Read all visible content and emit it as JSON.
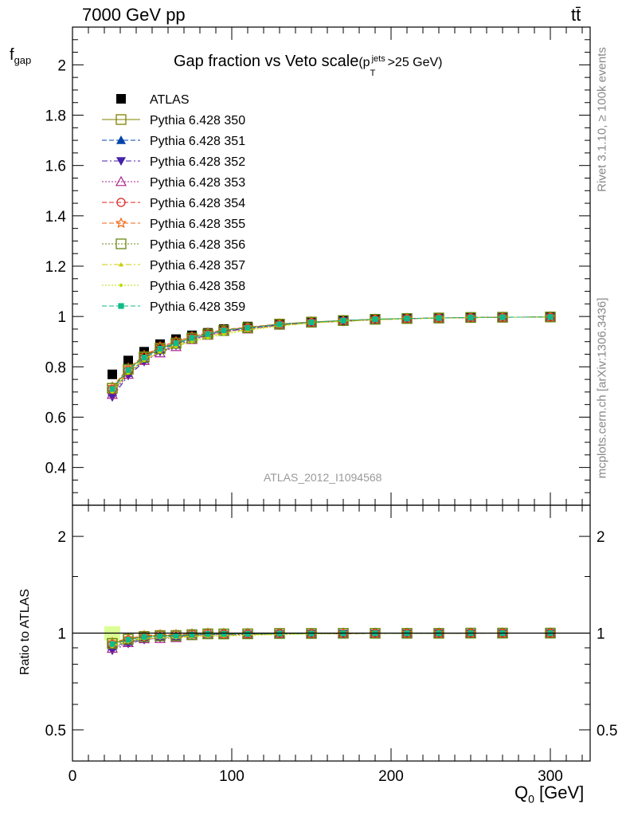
{
  "header": {
    "left": "7000 GeV pp",
    "right": "tt̄"
  },
  "side": {
    "rivet": "Rivet 3.1.10, ≥ 100k events",
    "mcplots": "mcplots.cern.ch [arXiv:1306.3436]"
  },
  "watermark": "ATLAS_2012_I1094568",
  "colors": {
    "ATLAS": "#000000",
    "s350": "#808000",
    "s351": "#0044aa",
    "s352": "#4422aa",
    "s353": "#aa2288",
    "s354": "#dd2222",
    "s355": "#ee6611",
    "s356": "#668811",
    "s357": "#cccc00",
    "s358": "#bbdd00",
    "s359": "#11bb88"
  },
  "chart_data": [
    {
      "type": "line",
      "title": "Gap fraction vs Veto scale",
      "title_suffix": {
        "pre": "(p",
        "sup": "jets",
        "sub": "T",
        "post": ">25 GeV)"
      },
      "ylabel": "f",
      "ylabel_sub": "gap",
      "xlim": [
        0,
        325
      ],
      "ylim": [
        0.25,
        2.15
      ],
      "yticks": [
        0.4,
        0.6,
        0.8,
        1,
        1.2,
        1.4,
        1.6,
        1.8,
        2
      ],
      "ytick_labels": [
        "0.4",
        "0.6",
        "0.8",
        "1",
        "1.2",
        "1.4",
        "1.6",
        "1.8",
        "2"
      ],
      "x": [
        25,
        35,
        45,
        55,
        65,
        75,
        85,
        95,
        110,
        130,
        150,
        170,
        190,
        210,
        230,
        250,
        270,
        300
      ],
      "series": [
        {
          "name": "ATLAS",
          "marker": "filled-square",
          "dash": "none",
          "values": [
            0.77,
            0.825,
            0.86,
            0.89,
            0.91,
            0.925,
            0.935,
            0.95,
            0.96,
            0.972,
            0.98,
            0.985,
            0.99,
            0.993,
            0.995,
            0.996,
            0.997,
            0.998
          ]
        },
        {
          "name": "Pythia 6.428 350",
          "marker": "open-square",
          "dash": "solid",
          "values": [
            0.715,
            0.79,
            0.84,
            0.875,
            0.895,
            0.915,
            0.93,
            0.945,
            0.955,
            0.97,
            0.978,
            0.984,
            0.989,
            0.992,
            0.994,
            0.996,
            0.997,
            0.998
          ]
        },
        {
          "name": "Pythia 6.428 351",
          "marker": "filled-triangle-up",
          "dash": "dashed",
          "values": [
            0.7,
            0.775,
            0.83,
            0.87,
            0.89,
            0.915,
            0.93,
            0.945,
            0.955,
            0.968,
            0.977,
            0.984,
            0.988,
            0.992,
            0.994,
            0.996,
            0.997,
            0.998
          ]
        },
        {
          "name": "Pythia 6.428 352",
          "marker": "filled-triangle-down",
          "dash": "dashdot",
          "values": [
            0.68,
            0.765,
            0.82,
            0.86,
            0.885,
            0.91,
            0.925,
            0.94,
            0.952,
            0.966,
            0.976,
            0.982,
            0.987,
            0.991,
            0.994,
            0.995,
            0.997,
            0.998
          ]
        },
        {
          "name": "Pythia 6.428 353",
          "marker": "open-triangle-up",
          "dash": "dotted",
          "values": [
            0.69,
            0.77,
            0.825,
            0.855,
            0.88,
            0.908,
            0.925,
            0.94,
            0.95,
            0.965,
            0.975,
            0.981,
            0.987,
            0.991,
            0.994,
            0.995,
            0.997,
            0.998
          ]
        },
        {
          "name": "Pythia 6.428 354",
          "marker": "open-circle",
          "dash": "dashed",
          "values": [
            0.71,
            0.785,
            0.84,
            0.88,
            0.9,
            0.92,
            0.935,
            0.945,
            0.955,
            0.97,
            0.977,
            0.98,
            0.988,
            0.992,
            0.994,
            0.996,
            0.997,
            0.998
          ]
        },
        {
          "name": "Pythia 6.428 355",
          "marker": "open-star",
          "dash": "dashed",
          "values": [
            0.72,
            0.795,
            0.845,
            0.88,
            0.9,
            0.92,
            0.935,
            0.948,
            0.958,
            0.97,
            0.978,
            0.984,
            0.989,
            0.992,
            0.994,
            0.996,
            0.997,
            0.998
          ]
        },
        {
          "name": "Pythia 6.428 356",
          "marker": "open-square",
          "dash": "dotted",
          "values": [
            0.715,
            0.79,
            0.838,
            0.872,
            0.893,
            0.914,
            0.93,
            0.944,
            0.955,
            0.969,
            0.977,
            0.984,
            0.989,
            0.992,
            0.994,
            0.996,
            0.997,
            0.998
          ]
        },
        {
          "name": "Pythia 6.428 357",
          "marker": "small-triangle",
          "dash": "dashdot",
          "values": [
            0.705,
            0.78,
            0.83,
            0.865,
            0.885,
            0.905,
            0.92,
            0.935,
            0.948,
            0.964,
            0.975,
            0.982,
            0.987,
            0.991,
            0.994,
            0.995,
            0.997,
            0.998
          ]
        },
        {
          "name": "Pythia 6.428 358",
          "marker": "dot",
          "dash": "dotted",
          "values": [
            0.7,
            0.775,
            0.825,
            0.86,
            0.88,
            0.9,
            0.915,
            0.93,
            0.945,
            0.962,
            0.974,
            0.981,
            0.987,
            0.991,
            0.994,
            0.995,
            0.997,
            0.998
          ]
        },
        {
          "name": "Pythia 6.428 359",
          "marker": "filled-square-small",
          "dash": "dashed",
          "values": [
            0.712,
            0.787,
            0.837,
            0.872,
            0.894,
            0.915,
            0.93,
            0.945,
            0.955,
            0.969,
            0.977,
            0.984,
            0.989,
            0.992,
            0.994,
            0.996,
            0.997,
            0.998
          ]
        }
      ],
      "legend": "top-left",
      "grid": false
    },
    {
      "type": "line",
      "ylabel": "Ratio to ATLAS",
      "xlabel": "Q",
      "xlabel_sub": "0",
      "xlabel_unit": " [GeV]",
      "xlim": [
        0,
        325
      ],
      "ylim": [
        0.4,
        2.5
      ],
      "log_y": true,
      "yticks": [
        0.5,
        1,
        2
      ],
      "ytick_labels": [
        "0.5",
        "1",
        "2"
      ],
      "xticks": [
        0,
        100,
        200,
        300
      ],
      "xtick_labels": [
        "0",
        "100",
        "200",
        "300"
      ],
      "reference_line": 1,
      "uncertainty_band": {
        "x": [
          20,
          30
        ],
        "low": 0.95,
        "high": 1.05
      }
    }
  ]
}
